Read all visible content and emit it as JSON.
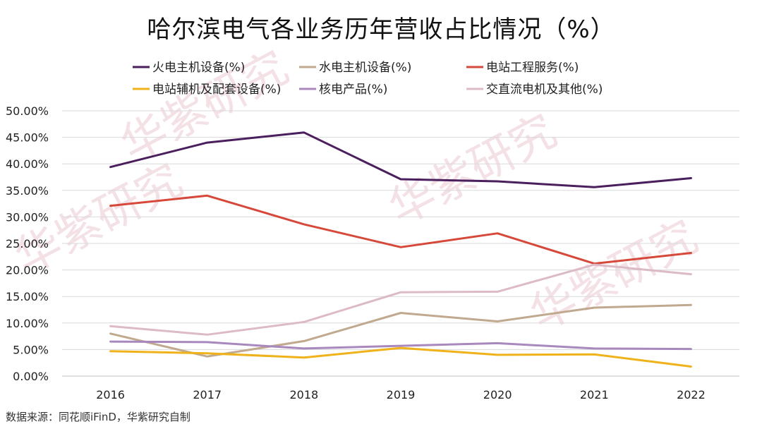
{
  "chart_data": {
    "type": "line",
    "title": "哈尔滨电气各业务历年营收占比情况（%）",
    "categories": [
      "2016",
      "2017",
      "2018",
      "2019",
      "2020",
      "2021",
      "2022"
    ],
    "ylim": [
      0,
      50
    ],
    "y_tick_labels": [
      "0.00%",
      "5.00%",
      "10.00%",
      "15.00%",
      "20.00%",
      "25.00%",
      "30.00%",
      "35.00%",
      "40.00%",
      "45.00%",
      "50.00%"
    ],
    "grid": true,
    "legend_position": "top",
    "series": [
      {
        "name": "火电主机设备(%)",
        "color": "#4b1f5e",
        "values": [
          39.4,
          44.0,
          45.9,
          37.1,
          36.7,
          35.6,
          37.3
        ]
      },
      {
        "name": "水电主机设备(%)",
        "color": "#c0a98e",
        "values": [
          8.0,
          3.7,
          6.6,
          11.9,
          10.3,
          12.9,
          13.4
        ]
      },
      {
        "name": "电站工程服务(%)",
        "color": "#d6493a",
        "values": [
          32.1,
          34.0,
          28.6,
          24.3,
          26.9,
          21.2,
          23.2
        ]
      },
      {
        "name": "电站辅机及配套设备(%)",
        "color": "#f0b21a",
        "values": [
          4.7,
          4.3,
          3.5,
          5.3,
          4.0,
          4.1,
          1.8
        ]
      },
      {
        "name": "核电产品(%)",
        "color": "#a888bd",
        "values": [
          6.5,
          6.4,
          5.2,
          5.7,
          6.2,
          5.2,
          5.1
        ]
      },
      {
        "name": "交直流电机及其他(%)",
        "color": "#dcbac8",
        "values": [
          9.4,
          7.8,
          10.2,
          15.8,
          15.9,
          21.0,
          19.2
        ]
      }
    ]
  },
  "watermark": "华紫研究",
  "source": "数据来源：同花顺iFinD，华紫研究自制"
}
